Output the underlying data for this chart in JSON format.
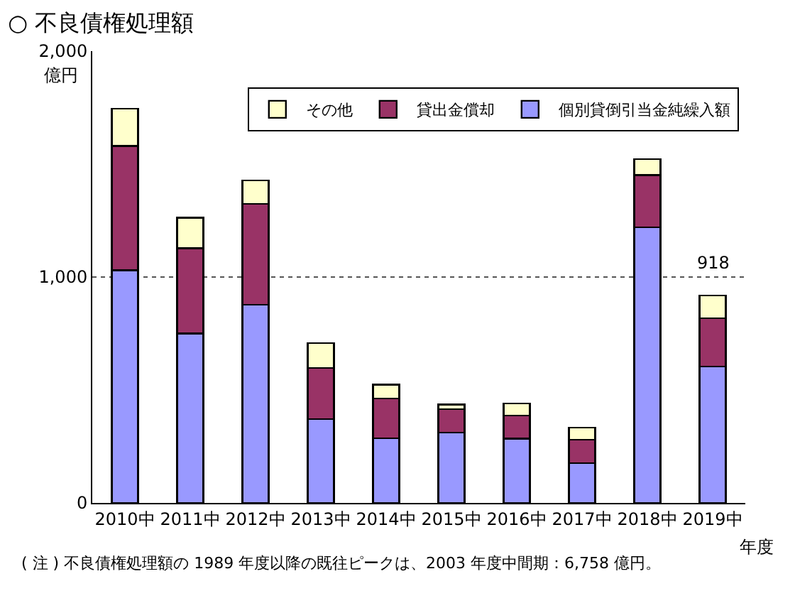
{
  "chart_data": {
    "type": "bar",
    "title": "○ 不良債権処理額",
    "ylabel": "億円",
    "xlabel": "年度",
    "categories": [
      "2010中",
      "2011中",
      "2012中",
      "2013中",
      "2014中",
      "2015中",
      "2016中",
      "2017中",
      "2018中",
      "2019中"
    ],
    "stacked": true,
    "series": [
      {
        "name": "個別貸倒引当金純繰入額",
        "color": "#9999ff",
        "values": [
          1030,
          750,
          878,
          372,
          287,
          311,
          285,
          177,
          1220,
          604
        ]
      },
      {
        "name": "貸出金償却",
        "color": "#993366",
        "values": [
          550,
          378,
          445,
          226,
          176,
          104,
          101,
          102,
          231,
          213
        ]
      },
      {
        "name": "その他",
        "color": "#ffffcc",
        "values": [
          165,
          134,
          104,
          109,
          61,
          20,
          55,
          54,
          71,
          101
        ]
      }
    ],
    "totals": [
      null,
      null,
      null,
      null,
      null,
      null,
      null,
      null,
      null,
      "918"
    ],
    "ylim": [
      0,
      2000
    ],
    "yticks": [
      {
        "value": 0,
        "label": "0"
      },
      {
        "value": 1000,
        "label": "1,000"
      },
      {
        "value": 2000,
        "label": "2,000"
      }
    ],
    "grid": "y",
    "legend": "top right",
    "annotations": [
      "( 注 ) 不良債権処理額の 1989 年度以降の既往ピークは、2003 年度中間期：6,758 億円。"
    ]
  }
}
